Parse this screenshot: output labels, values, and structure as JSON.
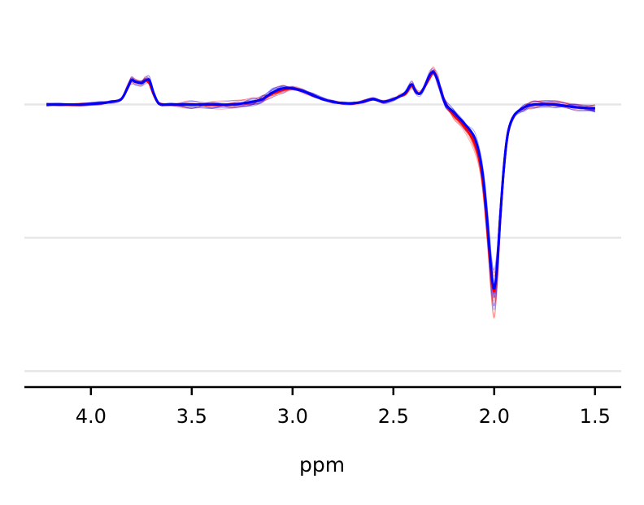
{
  "chart_data": {
    "type": "line",
    "title": "",
    "xlabel": "ppm",
    "ylabel": "",
    "x_axis": {
      "reversed": true,
      "xlim": [
        4.33,
        1.37
      ],
      "ticks": [
        4.0,
        3.5,
        3.0,
        2.5,
        2.0,
        1.5
      ],
      "tick_labels": [
        "4.0",
        "3.5",
        "3.0",
        "2.5",
        "2.0",
        "1.5"
      ]
    },
    "y_axis": {
      "visible": false,
      "ylim": [
        -1.06,
        0.27
      ],
      "gridlines": [
        0.0,
        -0.5,
        -1.0
      ]
    },
    "grid": "horizontal",
    "legend": "none",
    "colors": {
      "red": "#ff0000",
      "blue": "#0000ff",
      "grid": "#e6e6e6"
    },
    "x": [
      4.22,
      4.15,
      4.05,
      3.95,
      3.9,
      3.85,
      3.82,
      3.8,
      3.78,
      3.75,
      3.73,
      3.71,
      3.69,
      3.67,
      3.65,
      3.6,
      3.5,
      3.4,
      3.3,
      3.2,
      3.15,
      3.1,
      3.05,
      3.0,
      2.95,
      2.9,
      2.85,
      2.8,
      2.75,
      2.7,
      2.65,
      2.6,
      2.55,
      2.5,
      2.47,
      2.44,
      2.41,
      2.39,
      2.37,
      2.35,
      2.32,
      2.3,
      2.28,
      2.26,
      2.24,
      2.2,
      2.15,
      2.1,
      2.07,
      2.05,
      2.03,
      2.015,
      2.0,
      1.985,
      1.97,
      1.95,
      1.93,
      1.9,
      1.85,
      1.8,
      1.7,
      1.6,
      1.5
    ],
    "series": [
      {
        "color": "red",
        "values": [
          0.0,
          0.0,
          0.0,
          0.005,
          0.01,
          0.02,
          0.06,
          0.09,
          0.085,
          0.08,
          0.09,
          0.08,
          0.04,
          0.01,
          0.0,
          0.0,
          0.0,
          0.0,
          0.0,
          0.01,
          0.02,
          0.04,
          0.055,
          0.06,
          0.05,
          0.035,
          0.02,
          0.01,
          0.005,
          0.005,
          0.01,
          0.02,
          0.01,
          0.02,
          0.03,
          0.04,
          0.07,
          0.05,
          0.04,
          0.06,
          0.1,
          0.12,
          0.09,
          0.04,
          0.0,
          -0.04,
          -0.08,
          -0.14,
          -0.22,
          -0.33,
          -0.5,
          -0.63,
          -0.7,
          -0.6,
          -0.42,
          -0.22,
          -0.1,
          -0.04,
          -0.01,
          0.0,
          0.0,
          -0.01,
          -0.015
        ]
      },
      {
        "color": "blue",
        "values": [
          0.0,
          0.0,
          0.0,
          0.005,
          0.01,
          0.02,
          0.06,
          0.09,
          0.085,
          0.08,
          0.09,
          0.09,
          0.045,
          0.01,
          0.0,
          0.0,
          0.0,
          0.0,
          0.0,
          0.01,
          0.02,
          0.045,
          0.06,
          0.06,
          0.05,
          0.035,
          0.02,
          0.01,
          0.005,
          0.005,
          0.01,
          0.02,
          0.01,
          0.02,
          0.03,
          0.045,
          0.075,
          0.05,
          0.04,
          0.06,
          0.11,
          0.12,
          0.09,
          0.04,
          0.0,
          -0.03,
          -0.07,
          -0.12,
          -0.2,
          -0.31,
          -0.48,
          -0.62,
          -0.69,
          -0.6,
          -0.42,
          -0.22,
          -0.1,
          -0.04,
          -0.01,
          0.0,
          0.0,
          -0.01,
          -0.015
        ]
      }
    ]
  }
}
